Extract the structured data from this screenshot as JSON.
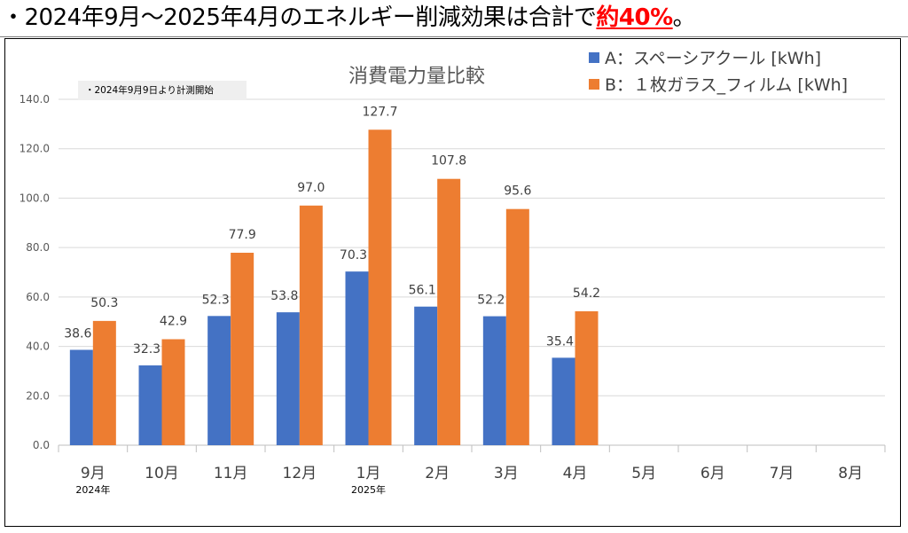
{
  "headline": {
    "prefix": "・2024年9月～2025年4月のエネルギー削減効果は合計で",
    "highlight": "約40%",
    "suffix": "。"
  },
  "note": "・2024年9月9日より計測開始",
  "colors": {
    "series_a": "#4472c4",
    "series_b": "#ed7d31",
    "highlight": "#ff0000",
    "grid": "#d9d9d9"
  },
  "chart_data": {
    "type": "bar",
    "title": "消費電力量比較",
    "categories": [
      "9月",
      "10月",
      "11月",
      "12月",
      "1月",
      "2月",
      "3月",
      "4月",
      "5月",
      "6月",
      "7月",
      "8月"
    ],
    "year_labels": [
      {
        "category_index": 0,
        "text": "2024年"
      },
      {
        "category_index": 4,
        "text": "2025年"
      }
    ],
    "series": [
      {
        "name": "A：スペーシアクール [kWh]",
        "values": [
          38.6,
          32.3,
          52.3,
          53.8,
          70.3,
          56.1,
          52.2,
          35.4,
          null,
          null,
          null,
          null
        ]
      },
      {
        "name": "B：１枚ガラス_フィルム [kWh]",
        "values": [
          50.3,
          42.9,
          77.9,
          97.0,
          127.7,
          107.8,
          95.6,
          54.2,
          null,
          null,
          null,
          null
        ]
      }
    ],
    "ylim": [
      0,
      140
    ],
    "yticks": [
      0,
      20,
      40,
      60,
      80,
      100,
      120,
      140
    ],
    "ytick_labels": [
      "0.0",
      "20.0",
      "40.0",
      "60.0",
      "80.0",
      "100.0",
      "120.0",
      "140.0"
    ],
    "xlabel": "",
    "ylabel": "",
    "grid": true,
    "legend_position": "top-right"
  }
}
